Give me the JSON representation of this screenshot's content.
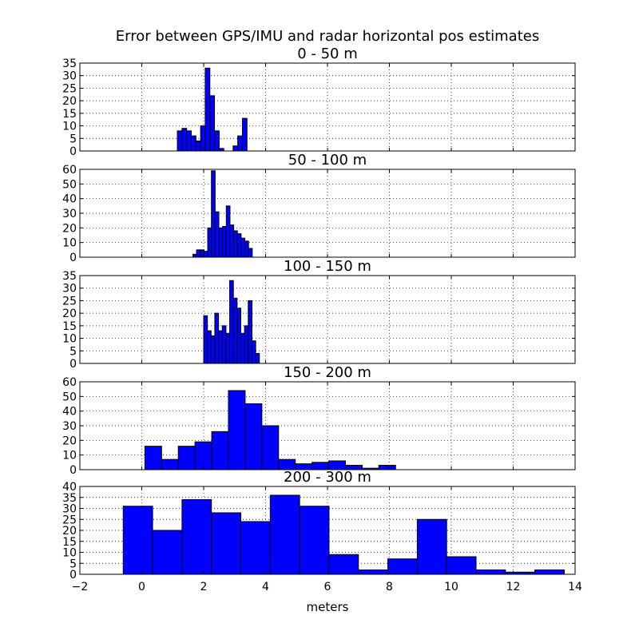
{
  "title": "Error between GPS/IMU and radar horizontal pos estimates",
  "xlabel": "meters",
  "colors": {
    "bar_fill": "#0000ff",
    "bar_edge": "#000000",
    "grid": "#000000",
    "background": "#ffffff"
  },
  "chart_data": [
    {
      "type": "bar",
      "title": "0 - 50 m",
      "grid": true,
      "xlim": [
        -2,
        14
      ],
      "ylim": [
        0,
        35
      ],
      "yticks": [
        0,
        5,
        10,
        15,
        20,
        25,
        30,
        35
      ],
      "xticks_visible": false,
      "bins": [
        {
          "x0": 1.15,
          "x1": 1.3,
          "value": 8
        },
        {
          "x0": 1.3,
          "x1": 1.45,
          "value": 9
        },
        {
          "x0": 1.45,
          "x1": 1.6,
          "value": 8
        },
        {
          "x0": 1.6,
          "x1": 1.75,
          "value": 6
        },
        {
          "x0": 1.75,
          "x1": 1.9,
          "value": 4
        },
        {
          "x0": 1.9,
          "x1": 2.05,
          "value": 10
        },
        {
          "x0": 2.05,
          "x1": 2.2,
          "value": 33
        },
        {
          "x0": 2.2,
          "x1": 2.35,
          "value": 22
        },
        {
          "x0": 2.35,
          "x1": 2.5,
          "value": 8
        },
        {
          "x0": 2.5,
          "x1": 2.65,
          "value": 1
        },
        {
          "x0": 2.65,
          "x1": 2.8,
          "value": 0
        },
        {
          "x0": 2.8,
          "x1": 2.95,
          "value": 0
        },
        {
          "x0": 2.95,
          "x1": 3.1,
          "value": 2
        },
        {
          "x0": 3.1,
          "x1": 3.25,
          "value": 6
        },
        {
          "x0": 3.25,
          "x1": 3.4,
          "value": 13
        }
      ]
    },
    {
      "type": "bar",
      "title": "50 - 100 m",
      "grid": true,
      "xlim": [
        -2,
        14
      ],
      "ylim": [
        0,
        60
      ],
      "yticks": [
        0,
        10,
        20,
        30,
        40,
        50,
        60
      ],
      "xticks_visible": false,
      "bins": [
        {
          "x0": 1.65,
          "x1": 1.77,
          "value": 2
        },
        {
          "x0": 1.77,
          "x1": 1.89,
          "value": 5
        },
        {
          "x0": 1.89,
          "x1": 2.01,
          "value": 5
        },
        {
          "x0": 2.01,
          "x1": 2.13,
          "value": 4
        },
        {
          "x0": 2.13,
          "x1": 2.25,
          "value": 20
        },
        {
          "x0": 2.25,
          "x1": 2.37,
          "value": 59
        },
        {
          "x0": 2.37,
          "x1": 2.49,
          "value": 31
        },
        {
          "x0": 2.49,
          "x1": 2.61,
          "value": 20
        },
        {
          "x0": 2.61,
          "x1": 2.73,
          "value": 21
        },
        {
          "x0": 2.73,
          "x1": 2.85,
          "value": 35
        },
        {
          "x0": 2.85,
          "x1": 2.97,
          "value": 22
        },
        {
          "x0": 2.97,
          "x1": 3.09,
          "value": 18
        },
        {
          "x0": 3.09,
          "x1": 3.21,
          "value": 16
        },
        {
          "x0": 3.21,
          "x1": 3.33,
          "value": 13
        },
        {
          "x0": 3.33,
          "x1": 3.45,
          "value": 11
        },
        {
          "x0": 3.45,
          "x1": 3.57,
          "value": 6
        }
      ]
    },
    {
      "type": "bar",
      "title": "100 - 150 m",
      "grid": true,
      "xlim": [
        -2,
        14
      ],
      "ylim": [
        0,
        35
      ],
      "yticks": [
        0,
        5,
        10,
        15,
        20,
        25,
        30,
        35
      ],
      "xticks_visible": false,
      "bins": [
        {
          "x0": 2.0,
          "x1": 2.12,
          "value": 19
        },
        {
          "x0": 2.12,
          "x1": 2.24,
          "value": 13
        },
        {
          "x0": 2.24,
          "x1": 2.36,
          "value": 11
        },
        {
          "x0": 2.36,
          "x1": 2.48,
          "value": 20
        },
        {
          "x0": 2.48,
          "x1": 2.6,
          "value": 13
        },
        {
          "x0": 2.6,
          "x1": 2.72,
          "value": 15
        },
        {
          "x0": 2.72,
          "x1": 2.84,
          "value": 12
        },
        {
          "x0": 2.84,
          "x1": 2.96,
          "value": 33
        },
        {
          "x0": 2.96,
          "x1": 3.08,
          "value": 26
        },
        {
          "x0": 3.08,
          "x1": 3.2,
          "value": 22
        },
        {
          "x0": 3.2,
          "x1": 3.32,
          "value": 12
        },
        {
          "x0": 3.32,
          "x1": 3.44,
          "value": 15
        },
        {
          "x0": 3.44,
          "x1": 3.56,
          "value": 25
        },
        {
          "x0": 3.56,
          "x1": 3.68,
          "value": 9
        },
        {
          "x0": 3.68,
          "x1": 3.8,
          "value": 4
        }
      ]
    },
    {
      "type": "bar",
      "title": "150 - 200 m",
      "grid": true,
      "xlim": [
        -2,
        14
      ],
      "ylim": [
        0,
        60
      ],
      "yticks": [
        0,
        10,
        20,
        30,
        40,
        50,
        60
      ],
      "xticks_visible": false,
      "bins": [
        {
          "x0": 0.1,
          "x1": 0.64,
          "value": 16
        },
        {
          "x0": 0.64,
          "x1": 1.18,
          "value": 7
        },
        {
          "x0": 1.18,
          "x1": 1.72,
          "value": 16
        },
        {
          "x0": 1.72,
          "x1": 2.26,
          "value": 19
        },
        {
          "x0": 2.26,
          "x1": 2.8,
          "value": 26
        },
        {
          "x0": 2.8,
          "x1": 3.34,
          "value": 54
        },
        {
          "x0": 3.34,
          "x1": 3.88,
          "value": 45
        },
        {
          "x0": 3.88,
          "x1": 4.42,
          "value": 30
        },
        {
          "x0": 4.42,
          "x1": 4.96,
          "value": 7
        },
        {
          "x0": 4.96,
          "x1": 5.5,
          "value": 4
        },
        {
          "x0": 5.5,
          "x1": 6.04,
          "value": 5
        },
        {
          "x0": 6.04,
          "x1": 6.58,
          "value": 6
        },
        {
          "x0": 6.58,
          "x1": 7.12,
          "value": 3
        },
        {
          "x0": 7.12,
          "x1": 7.66,
          "value": 1
        },
        {
          "x0": 7.66,
          "x1": 8.2,
          "value": 3
        }
      ]
    },
    {
      "type": "bar",
      "title": "200 - 300 m",
      "grid": true,
      "xlim": [
        -2,
        14
      ],
      "ylim": [
        0,
        40
      ],
      "yticks": [
        0,
        5,
        10,
        15,
        20,
        25,
        30,
        35,
        40
      ],
      "xticks": [
        -2,
        0,
        2,
        4,
        6,
        8,
        10,
        12,
        14
      ],
      "xticks_visible": true,
      "bins": [
        {
          "x0": -0.6,
          "x1": 0.35,
          "value": 31
        },
        {
          "x0": 0.35,
          "x1": 1.3,
          "value": 20
        },
        {
          "x0": 1.3,
          "x1": 2.25,
          "value": 34
        },
        {
          "x0": 2.25,
          "x1": 3.2,
          "value": 28
        },
        {
          "x0": 3.2,
          "x1": 4.15,
          "value": 24
        },
        {
          "x0": 4.15,
          "x1": 5.1,
          "value": 36
        },
        {
          "x0": 5.1,
          "x1": 6.05,
          "value": 31
        },
        {
          "x0": 6.05,
          "x1": 7.0,
          "value": 9
        },
        {
          "x0": 7.0,
          "x1": 7.95,
          "value": 2
        },
        {
          "x0": 7.95,
          "x1": 8.9,
          "value": 7
        },
        {
          "x0": 8.9,
          "x1": 9.85,
          "value": 25
        },
        {
          "x0": 9.85,
          "x1": 10.8,
          "value": 8
        },
        {
          "x0": 10.8,
          "x1": 11.75,
          "value": 2
        },
        {
          "x0": 11.75,
          "x1": 12.7,
          "value": 1
        },
        {
          "x0": 12.7,
          "x1": 13.65,
          "value": 2
        }
      ]
    }
  ]
}
